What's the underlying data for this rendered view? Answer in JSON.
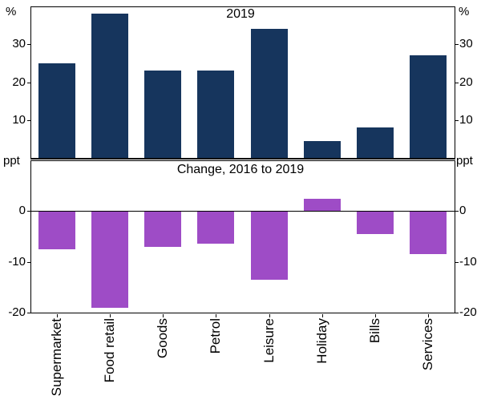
{
  "figure": {
    "background": "#ffffff",
    "categories": [
      "Supermarket",
      "Food retail",
      "Goods",
      "Petrol",
      "Leisure",
      "Holiday",
      "Bills",
      "Services"
    ]
  },
  "chart_data": [
    {
      "type": "bar",
      "title": "2019",
      "unit": "%",
      "categories": [
        "Supermarket",
        "Food retail",
        "Goods",
        "Petrol",
        "Leisure",
        "Holiday",
        "Bills",
        "Services"
      ],
      "values": [
        25,
        38,
        23,
        23,
        34,
        4.5,
        8,
        27
      ],
      "ylim": [
        0,
        40
      ],
      "yticks": [
        10,
        20,
        30
      ],
      "bar_color": "#16355d",
      "grid": false,
      "legend_position": "none",
      "tick_labels_both_sides": true
    },
    {
      "type": "bar",
      "title": "Change, 2016 to 2019",
      "unit": "ppt",
      "categories": [
        "Supermarket",
        "Food retail",
        "Goods",
        "Petrol",
        "Leisure",
        "Holiday",
        "Bills",
        "Services"
      ],
      "values": [
        -7.5,
        -19,
        -7,
        -6.5,
        -13.5,
        2.5,
        -4.5,
        -8.5
      ],
      "ylim": [
        -20,
        10
      ],
      "yticks": [
        0,
        -10,
        -20
      ],
      "bar_color": "#9e4cc6",
      "grid": false,
      "legend_position": "none",
      "tick_labels_both_sides": true
    }
  ]
}
